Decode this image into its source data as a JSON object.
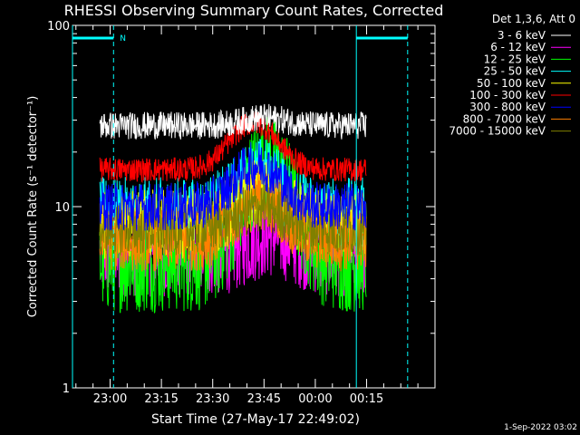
{
  "chart_data": {
    "type": "line",
    "title": "RHESSI Observing Summary Count Rates, Corrected",
    "xlabel": "Start Time (27-May-17 22:49:02)",
    "ylabel": "Corrected Count Rate (s⁻¹ detector⁻¹)",
    "y_scale": "log",
    "ylim": [
      1,
      100
    ],
    "y_ticks": [
      "1",
      "10",
      "100"
    ],
    "x_range_minutes": [
      "22:49",
      "00:35"
    ],
    "x_ticks": [
      "23:00",
      "23:15",
      "23:30",
      "23:45",
      "00:00",
      "00:15"
    ],
    "x_tick_minutes_after_2249": [
      11,
      26,
      41,
      56,
      71,
      86
    ],
    "data_span": [
      "22:57",
      "00:15"
    ],
    "legend_title": "Det 1,3,6, Att 0",
    "legend_placement": "right",
    "series": [
      {
        "name": "3 - 6 keV",
        "color": "#ffffff",
        "base": 28,
        "peak_time": "23:45",
        "peak": 31,
        "noise": 0.08
      },
      {
        "name": "6 - 12 keV",
        "color": "#ff00ff",
        "base": 5.5,
        "peak_time": "23:47",
        "peak": 7,
        "noise": 0.25
      },
      {
        "name": "12 - 25 keV",
        "color": "#00ff00",
        "base": 5.0,
        "peak_time": "23:46",
        "peak": 17,
        "noise": 0.3
      },
      {
        "name": "25 - 50 keV",
        "color": "#00ffff",
        "base": 9.0,
        "peak_time": "23:44",
        "peak": 15,
        "noise": 0.22
      },
      {
        "name": "50 - 100 keV",
        "color": "#ffff00",
        "base": 8.0,
        "peak_time": "23:44",
        "peak": 12,
        "noise": 0.2
      },
      {
        "name": "100 - 300 keV",
        "color": "#ff0000",
        "base": 16,
        "peak_time": "23:42",
        "peak": 29,
        "noise": 0.07
      },
      {
        "name": "300 - 800 keV",
        "color": "#0000ff",
        "base": 10,
        "peak_time": "23:43",
        "peak": 17,
        "noise": 0.14
      },
      {
        "name": "800 - 7000 keV",
        "color": "#ff8000",
        "base": 6.5,
        "peak_time": "23:44",
        "peak": 11,
        "noise": 0.18
      },
      {
        "name": "7000 - 15000 keV",
        "color": "#808000",
        "base": 7.5,
        "peak_time": "23:44",
        "peak": 10,
        "noise": 0.15
      }
    ],
    "events": [
      {
        "type": "night",
        "label": "N",
        "start": "22:49",
        "end": "23:01"
      },
      {
        "type": "night",
        "label": "",
        "start": "00:12",
        "end": "00:27"
      }
    ]
  },
  "footer": {
    "timestamp": "1-Sep-2022 03:02"
  }
}
